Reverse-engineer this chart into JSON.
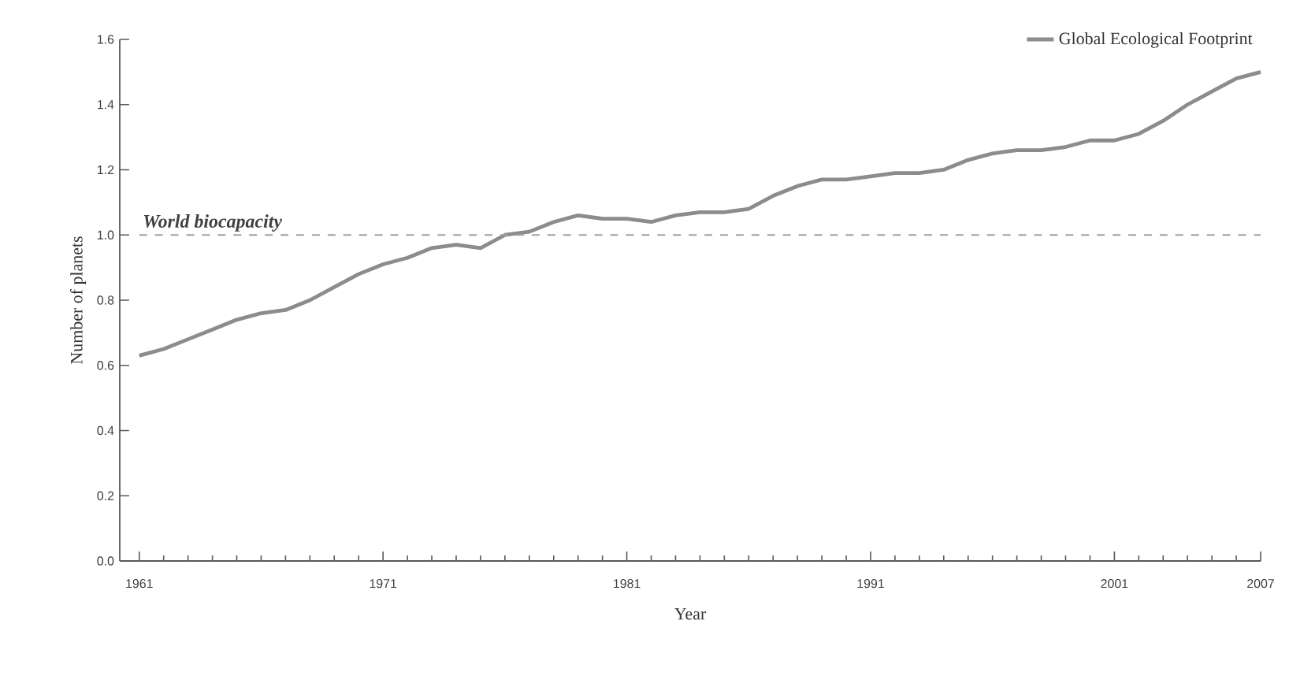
{
  "chart_data": {
    "type": "line",
    "xlabel": "Year",
    "ylabel": "Number of planets",
    "x": [
      1961,
      1962,
      1963,
      1964,
      1965,
      1966,
      1967,
      1968,
      1969,
      1970,
      1971,
      1972,
      1973,
      1974,
      1975,
      1976,
      1977,
      1978,
      1979,
      1980,
      1981,
      1982,
      1983,
      1984,
      1985,
      1986,
      1987,
      1988,
      1989,
      1990,
      1991,
      1992,
      1993,
      1994,
      1995,
      1996,
      1997,
      1998,
      1999,
      2000,
      2001,
      2002,
      2003,
      2004,
      2005,
      2006,
      2007
    ],
    "series": [
      {
        "name": "Global Ecological Footprint",
        "color": "#8c8c8c",
        "values": [
          0.63,
          0.65,
          0.68,
          0.71,
          0.74,
          0.76,
          0.77,
          0.8,
          0.84,
          0.88,
          0.91,
          0.93,
          0.96,
          0.97,
          0.96,
          1.0,
          1.01,
          1.04,
          1.06,
          1.05,
          1.05,
          1.04,
          1.06,
          1.07,
          1.07,
          1.08,
          1.12,
          1.15,
          1.17,
          1.17,
          1.18,
          1.19,
          1.19,
          1.2,
          1.23,
          1.25,
          1.26,
          1.26,
          1.27,
          1.29,
          1.29,
          1.31,
          1.35,
          1.4,
          1.44,
          1.48,
          1.5
        ]
      }
    ],
    "xlim": [
      1960.2,
      2007
    ],
    "ylim": [
      0,
      1.6
    ],
    "yticks": [
      {
        "value": 0,
        "label": "0.0"
      },
      0.2,
      0.4,
      0.6,
      0.8,
      {
        "value": 1,
        "label": "1.0"
      },
      1.2,
      1.4,
      1.6
    ],
    "xticks": [
      1961,
      {
        "value": 1962,
        "label": null
      },
      {
        "value": 1963,
        "label": null
      },
      {
        "value": 1964,
        "label": null
      },
      {
        "value": 1965,
        "label": null
      },
      {
        "value": 1966,
        "label": null
      },
      {
        "value": 1967,
        "label": null
      },
      {
        "value": 1968,
        "label": null
      },
      {
        "value": 1969,
        "label": null
      },
      {
        "value": 1970,
        "label": null
      },
      1971,
      {
        "value": 1972,
        "label": null
      },
      {
        "value": 1973,
        "label": null
      },
      {
        "value": 1974,
        "label": null
      },
      {
        "value": 1975,
        "label": null
      },
      {
        "value": 1976,
        "label": null
      },
      {
        "value": 1977,
        "label": null
      },
      {
        "value": 1978,
        "label": null
      },
      {
        "value": 1979,
        "label": null
      },
      {
        "value": 1980,
        "label": null
      },
      1981,
      {
        "value": 1982,
        "label": null
      },
      {
        "value": 1983,
        "label": null
      },
      {
        "value": 1984,
        "label": null
      },
      {
        "value": 1985,
        "label": null
      },
      {
        "value": 1986,
        "label": null
      },
      {
        "value": 1987,
        "label": null
      },
      {
        "value": 1988,
        "label": null
      },
      {
        "value": 1989,
        "label": null
      },
      {
        "value": 1990,
        "label": null
      },
      1991,
      {
        "value": 1992,
        "label": null
      },
      {
        "value": 1993,
        "label": null
      },
      {
        "value": 1994,
        "label": null
      },
      {
        "value": 1995,
        "label": null
      },
      {
        "value": 1996,
        "label": null
      },
      {
        "value": 1997,
        "label": null
      },
      {
        "value": 1998,
        "label": null
      },
      {
        "value": 1999,
        "label": null
      },
      {
        "value": 2000,
        "label": null
      },
      2001,
      {
        "value": 2002,
        "label": null
      },
      {
        "value": 2003,
        "label": null
      },
      {
        "value": 2004,
        "label": null
      },
      {
        "value": 2005,
        "label": null
      },
      {
        "value": 2006,
        "label": null
      },
      2007
    ],
    "ref_lines": [
      {
        "axis": "y",
        "value": 1,
        "label": "World biocapacity",
        "color": "#a0a0a0",
        "line_style": "dashed"
      }
    ],
    "legend": "top right",
    "grid": false,
    "marker": "none",
    "line_style": "solid"
  }
}
